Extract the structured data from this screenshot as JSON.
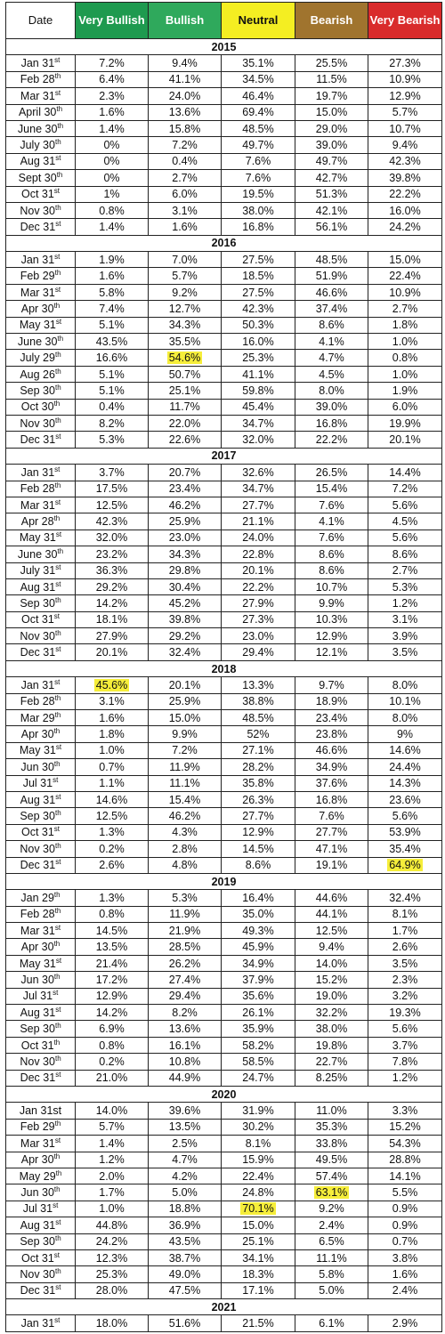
{
  "header": {
    "columns": [
      {
        "label": "Date"
      },
      {
        "label": "Very Bullish",
        "color": "#1e9a4f"
      },
      {
        "label": "Bullish",
        "color": "#2fa95c"
      },
      {
        "label": "Neutral",
        "color": "#f4ee22"
      },
      {
        "label": "Bearish",
        "color": "#a0742e"
      },
      {
        "label": "Very Bearish",
        "color": "#d92b2b"
      }
    ]
  },
  "highlight_color": "#f6ee3a",
  "sections": [
    {
      "year": "2015",
      "rows": [
        {
          "date": "Jan 31",
          "sup": "st",
          "cells": [
            "7.2%",
            "9.4%",
            "35.1%",
            "25.5%",
            "27.3%"
          ]
        },
        {
          "date": "Feb 28",
          "sup": "th",
          "cells": [
            "6.4%",
            "41.1%",
            "34.5%",
            "11.5%",
            "10.9%"
          ]
        },
        {
          "date": "Mar 31",
          "sup": "st",
          "cells": [
            "2.3%",
            "24.0%",
            "46.4%",
            "19.7%",
            "12.9%"
          ]
        },
        {
          "date": "April 30",
          "sup": "th",
          "cells": [
            "1.6%",
            "13.6%",
            "69.4%",
            "15.0%",
            "5.7%"
          ]
        },
        {
          "date": "June 30",
          "sup": "th",
          "cells": [
            "1.4%",
            "15.8%",
            "48.5%",
            "29.0%",
            "10.7%"
          ]
        },
        {
          "date": "July 30",
          "sup": "th",
          "cells": [
            "0%",
            "7.2%",
            "49.7%",
            "39.0%",
            "9.4%"
          ]
        },
        {
          "date": "Aug 31",
          "sup": "st",
          "cells": [
            "0%",
            "0.4%",
            "7.6%",
            "49.7%",
            "42.3%"
          ]
        },
        {
          "date": "Sept 30",
          "sup": "th",
          "cells": [
            "0%",
            "2.7%",
            "7.6%",
            "42.7%",
            "39.8%"
          ]
        },
        {
          "date": "Oct 31",
          "sup": "st",
          "cells": [
            "1%",
            "6.0%",
            "19.5%",
            "51.3%",
            "22.2%"
          ]
        },
        {
          "date": "Nov 30",
          "sup": "th",
          "cells": [
            "0.8%",
            "3.1%",
            "38.0%",
            "42.1%",
            "16.0%"
          ]
        },
        {
          "date": "Dec 31",
          "sup": "st",
          "cells": [
            "1.4%",
            "1.6%",
            "16.8%",
            "56.1%",
            "24.2%"
          ]
        }
      ]
    },
    {
      "year": "2016",
      "rows": [
        {
          "date": "Jan 31",
          "sup": "st",
          "cells": [
            "1.9%",
            "7.0%",
            "27.5%",
            "48.5%",
            "15.0%"
          ]
        },
        {
          "date": "Feb 29",
          "sup": "th",
          "cells": [
            "1.6%",
            "5.7%",
            "18.5%",
            "51.9%",
            "22.4%"
          ]
        },
        {
          "date": "Mar 31",
          "sup": "st",
          "cells": [
            "5.8%",
            "9.2%",
            "27.5%",
            "46.6%",
            "10.9%"
          ]
        },
        {
          "date": "Apr 30",
          "sup": "th",
          "cells": [
            "7.4%",
            "12.7%",
            "42.3%",
            "37.4%",
            "2.7%"
          ]
        },
        {
          "date": "May 31",
          "sup": "st",
          "cells": [
            "5.1%",
            "34.3%",
            "50.3%",
            "8.6%",
            "1.8%"
          ]
        },
        {
          "date": "June 30",
          "sup": "th",
          "cells": [
            "43.5%",
            "35.5%",
            "16.0%",
            "4.1%",
            "1.0%"
          ]
        },
        {
          "date": "July 29",
          "sup": "th",
          "cells": [
            "16.6%",
            "54.6%",
            "25.3%",
            "4.7%",
            "0.8%"
          ],
          "highlight": 1
        },
        {
          "date": "Aug 26",
          "sup": "th",
          "cells": [
            "5.1%",
            "50.7%",
            "41.1%",
            "4.5%",
            "1.0%"
          ]
        },
        {
          "date": "Sep 30",
          "sup": "th",
          "cells": [
            "5.1%",
            "25.1%",
            "59.8%",
            "8.0%",
            "1.9%"
          ]
        },
        {
          "date": "Oct 30",
          "sup": "th",
          "cells": [
            "0.4%",
            "11.7%",
            "45.4%",
            "39.0%",
            "6.0%"
          ]
        },
        {
          "date": "Nov 30",
          "sup": "th",
          "cells": [
            "8.2%",
            "22.0%",
            "34.7%",
            "16.8%",
            "19.9%"
          ]
        },
        {
          "date": "Dec 31",
          "sup": "st",
          "cells": [
            "5.3%",
            "22.6%",
            "32.0%",
            "22.2%",
            "20.1%"
          ]
        }
      ]
    },
    {
      "year": "2017",
      "rows": [
        {
          "date": "Jan 31",
          "sup": "st",
          "cells": [
            "3.7%",
            "20.7%",
            "32.6%",
            "26.5%",
            "14.4%"
          ]
        },
        {
          "date": "Feb 28",
          "sup": "th",
          "cells": [
            "17.5%",
            "23.4%",
            "34.7%",
            "15.4%",
            "7.2%"
          ]
        },
        {
          "date": "Mar 31",
          "sup": "st",
          "cells": [
            "12.5%",
            "46.2%",
            "27.7%",
            "7.6%",
            "5.6%"
          ]
        },
        {
          "date": "Apr 28",
          "sup": "th",
          "cells": [
            "42.3%",
            "25.9%",
            "21.1%",
            "4.1%",
            "4.5%"
          ]
        },
        {
          "date": "May 31",
          "sup": "st",
          "cells": [
            "32.0%",
            "23.0%",
            "24.0%",
            "7.6%",
            "5.6%"
          ]
        },
        {
          "date": "June 30",
          "sup": "th",
          "cells": [
            "23.2%",
            "34.3%",
            "22.8%",
            "8.6%",
            "8.6%"
          ]
        },
        {
          "date": "July 31",
          "sup": "st",
          "cells": [
            "36.3%",
            "29.8%",
            "20.1%",
            "8.6%",
            "2.7%"
          ]
        },
        {
          "date": "Aug 31",
          "sup": "st",
          "cells": [
            "29.2%",
            "30.4%",
            "22.2%",
            "10.7%",
            "5.3%"
          ]
        },
        {
          "date": "Sep 30",
          "sup": "th",
          "cells": [
            "14.2%",
            "45.2%",
            "27.9%",
            "9.9%",
            "1.2%"
          ]
        },
        {
          "date": "Oct 31",
          "sup": "st",
          "cells": [
            "18.1%",
            "39.8%",
            "27.3%",
            "10.3%",
            "3.1%"
          ]
        },
        {
          "date": "Nov 30",
          "sup": "th",
          "cells": [
            "27.9%",
            "29.2%",
            "23.0%",
            "12.9%",
            "3.9%"
          ]
        },
        {
          "date": "Dec 31",
          "sup": "st",
          "cells": [
            "20.1%",
            "32.4%",
            "29.4%",
            "12.1%",
            "3.5%"
          ]
        }
      ]
    },
    {
      "year": "2018",
      "rows": [
        {
          "date": "Jan 31",
          "sup": "st",
          "cells": [
            "45.6%",
            "20.1%",
            "13.3%",
            "9.7%",
            "8.0%"
          ],
          "highlight": 0
        },
        {
          "date": "Feb 28",
          "sup": "th",
          "cells": [
            "3.1%",
            "25.9%",
            "38.8%",
            "18.9%",
            "10.1%"
          ]
        },
        {
          "date": "Mar 29",
          "sup": "th",
          "cells": [
            "1.6%",
            "15.0%",
            "48.5%",
            "23.4%",
            "8.0%"
          ]
        },
        {
          "date": "Apr 30",
          "sup": "th",
          "cells": [
            "1.8%",
            "9.9%",
            "52%",
            "23.8%",
            "9%"
          ]
        },
        {
          "date": "May 31",
          "sup": "st",
          "cells": [
            "1.0%",
            "7.2%",
            "27.1%",
            "46.6%",
            "14.6%"
          ]
        },
        {
          "date": "Jun 30",
          "sup": "th",
          "cells": [
            "0.7%",
            "11.9%",
            "28.2%",
            "34.9%",
            "24.4%"
          ]
        },
        {
          "date": "Jul 31",
          "sup": "st",
          "cells": [
            "1.1%",
            "11.1%",
            "35.8%",
            "37.6%",
            "14.3%"
          ]
        },
        {
          "date": "Aug 31",
          "sup": "st",
          "cells": [
            "14.6%",
            "15.4%",
            "26.3%",
            "16.8%",
            "23.6%"
          ]
        },
        {
          "date": "Sep 30",
          "sup": "th",
          "cells": [
            "12.5%",
            "46.2%",
            "27.7%",
            "7.6%",
            "5.6%"
          ]
        },
        {
          "date": "Oct 31",
          "sup": "st",
          "cells": [
            "1.3%",
            "4.3%",
            "12.9%",
            "27.7%",
            "53.9%"
          ]
        },
        {
          "date": "Nov 30",
          "sup": "th",
          "cells": [
            "0.2%",
            "2.8%",
            "14.5%",
            "47.1%",
            "35.4%"
          ]
        },
        {
          "date": "Dec 31",
          "sup": "st",
          "cells": [
            "2.6%",
            "4.8%",
            "8.6%",
            "19.1%",
            "64.9%"
          ],
          "highlight": 4
        }
      ]
    },
    {
      "year": "2019",
      "rows": [
        {
          "date": "Jan 29",
          "sup": "th",
          "cells": [
            "1.3%",
            "5.3%",
            "16.4%",
            "44.6%",
            "32.4%"
          ]
        },
        {
          "date": "Feb 28",
          "sup": "th",
          "cells": [
            "0.8%",
            "11.9%",
            "35.0%",
            "44.1%",
            "8.1%"
          ]
        },
        {
          "date": "Mar 31",
          "sup": "st",
          "cells": [
            "14.5%",
            "21.9%",
            "49.3%",
            "12.5%",
            "1.7%"
          ]
        },
        {
          "date": "Apr 30",
          "sup": "th",
          "cells": [
            "13.5%",
            "28.5%",
            "45.9%",
            "9.4%",
            "2.6%"
          ]
        },
        {
          "date": "May 31",
          "sup": "st",
          "cells": [
            "21.4%",
            "26.2%",
            "34.9%",
            "14.0%",
            "3.5%"
          ]
        },
        {
          "date": "Jun 30",
          "sup": "th",
          "cells": [
            "17.2%",
            "27.4%",
            "37.9%",
            "15.2%",
            "2.3%"
          ]
        },
        {
          "date": "Jul 31",
          "sup": "st",
          "cells": [
            "12.9%",
            "29.4%",
            "35.6%",
            "19.0%",
            "3.2%"
          ]
        },
        {
          "date": "Aug 31",
          "sup": "st",
          "cells": [
            "14.2%",
            "8.2%",
            "26.1%",
            "32.2%",
            "19.3%"
          ]
        },
        {
          "date": "Sep 30",
          "sup": "th",
          "cells": [
            "6.9%",
            "13.6%",
            "35.9%",
            "38.0%",
            "5.6%"
          ]
        },
        {
          "date": "Oct 31",
          "sup": "th",
          "cells": [
            "0.8%",
            "16.1%",
            "58.2%",
            "19.8%",
            "3.7%"
          ]
        },
        {
          "date": "Nov 30",
          "sup": "th",
          "cells": [
            "0.2%",
            "10.8%",
            "58.5%",
            "22.7%",
            "7.8%"
          ]
        },
        {
          "date": "Dec 31",
          "sup": "st",
          "cells": [
            "21.0%",
            "44.9%",
            "24.7%",
            "8.25%",
            "1.2%"
          ]
        }
      ]
    },
    {
      "year": "2020",
      "rows": [
        {
          "date": "Jan 31st",
          "cells": [
            "14.0%",
            "39.6%",
            "31.9%",
            "11.0%",
            "3.3%"
          ]
        },
        {
          "date": "Feb 29",
          "sup": "th",
          "cells": [
            "5.7%",
            "13.5%",
            "30.2%",
            "35.3%",
            "15.2%"
          ]
        },
        {
          "date": "Mar 31",
          "sup": "st",
          "cells": [
            "1.4%",
            "2.5%",
            "8.1%",
            "33.8%",
            "54.3%"
          ]
        },
        {
          "date": "Apr 30",
          "sup": "th",
          "cells": [
            "1.2%",
            "4.7%",
            "15.9%",
            "49.5%",
            "28.8%"
          ]
        },
        {
          "date": "May 29",
          "sup": "th",
          "cells": [
            "2.0%",
            "4.2%",
            "22.4%",
            "57.4%",
            "14.1%"
          ]
        },
        {
          "date": "Jun 30",
          "sup": "th",
          "cells": [
            "1.7%",
            "5.0%",
            "24.8%",
            "63.1%",
            "5.5%"
          ],
          "highlight": 3
        },
        {
          "date": "Jul 31",
          "sup": "st",
          "cells": [
            "1.0%",
            "18.8%",
            "70.1%",
            "9.2%",
            "0.9%"
          ],
          "highlight": 2
        },
        {
          "date": "Aug 31",
          "sup": "st",
          "cells": [
            "44.8%",
            "36.9%",
            "15.0%",
            "2.4%",
            "0.9%"
          ]
        },
        {
          "date": "Sep 30",
          "sup": "th",
          "cells": [
            "24.2%",
            "43.5%",
            "25.1%",
            "6.5%",
            "0.7%"
          ]
        },
        {
          "date": "Oct 31",
          "sup": "st",
          "cells": [
            "12.3%",
            "38.7%",
            "34.1%",
            "11.1%",
            "3.8%"
          ]
        },
        {
          "date": "Nov 30",
          "sup": "th",
          "cells": [
            "25.3%",
            "49.0%",
            "18.3%",
            "5.8%",
            "1.6%"
          ]
        },
        {
          "date": "Dec 31",
          "sup": "st",
          "cells": [
            "28.0%",
            "47.5%",
            "17.1%",
            "5.0%",
            "2.4%"
          ]
        }
      ]
    },
    {
      "year": "2021",
      "rows": [
        {
          "date": "Jan 31",
          "sup": "st",
          "cells": [
            "18.0%",
            "51.6%",
            "21.5%",
            "6.1%",
            "2.9%"
          ]
        }
      ]
    }
  ]
}
